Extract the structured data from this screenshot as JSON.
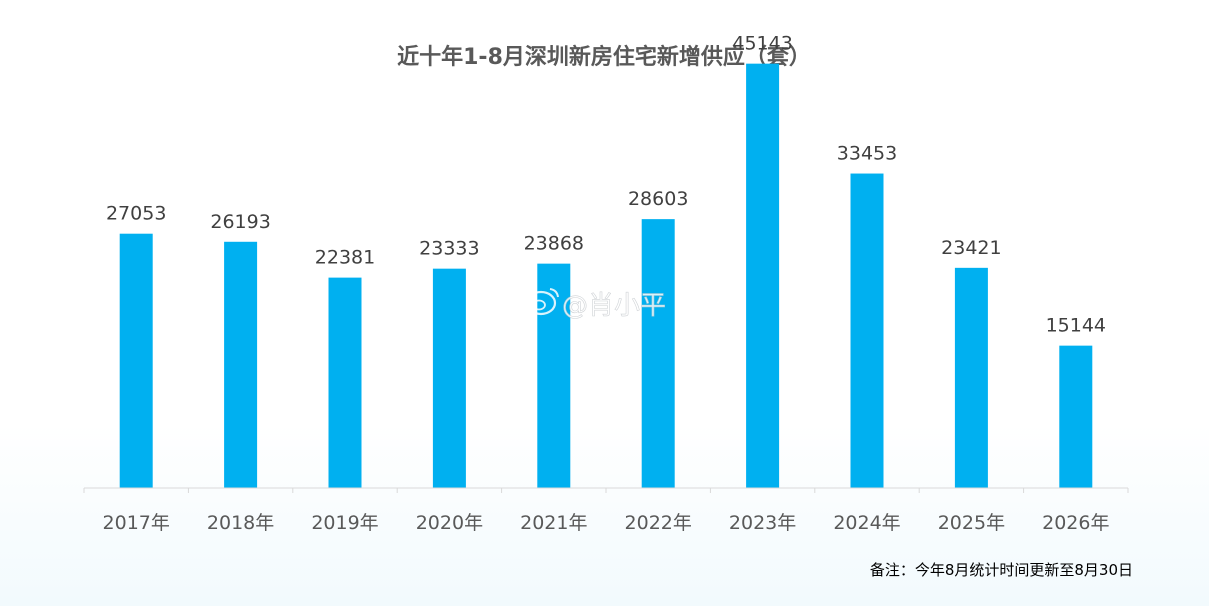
{
  "colors": {
    "bar": "#00b0f0",
    "title_text": "#595959",
    "label_text": "#404040",
    "axis_text": "#595959",
    "axis_line": "#d9d9d9",
    "note_text": "#000000",
    "watermark": "#ffffff"
  },
  "watermark": {
    "icon": "weibo-icon",
    "text": "@肖小平"
  },
  "chart_data": {
    "type": "bar",
    "title": "近十年1-8月深圳新房住宅新增供应（套）",
    "categories": [
      "2017年",
      "2018年",
      "2019年",
      "2020年",
      "2021年",
      "2022年",
      "2023年",
      "2024年",
      "2025年",
      "2026年"
    ],
    "values": [
      27053,
      26193,
      22381,
      23333,
      23868,
      28603,
      45143,
      33453,
      23421,
      15144
    ],
    "ylim": [
      0,
      50000
    ],
    "xlabel": "",
    "ylabel": "",
    "data_labels": true,
    "grid": false,
    "legend": "none",
    "note": "备注：今年8月统计时间更新至8月30日"
  }
}
